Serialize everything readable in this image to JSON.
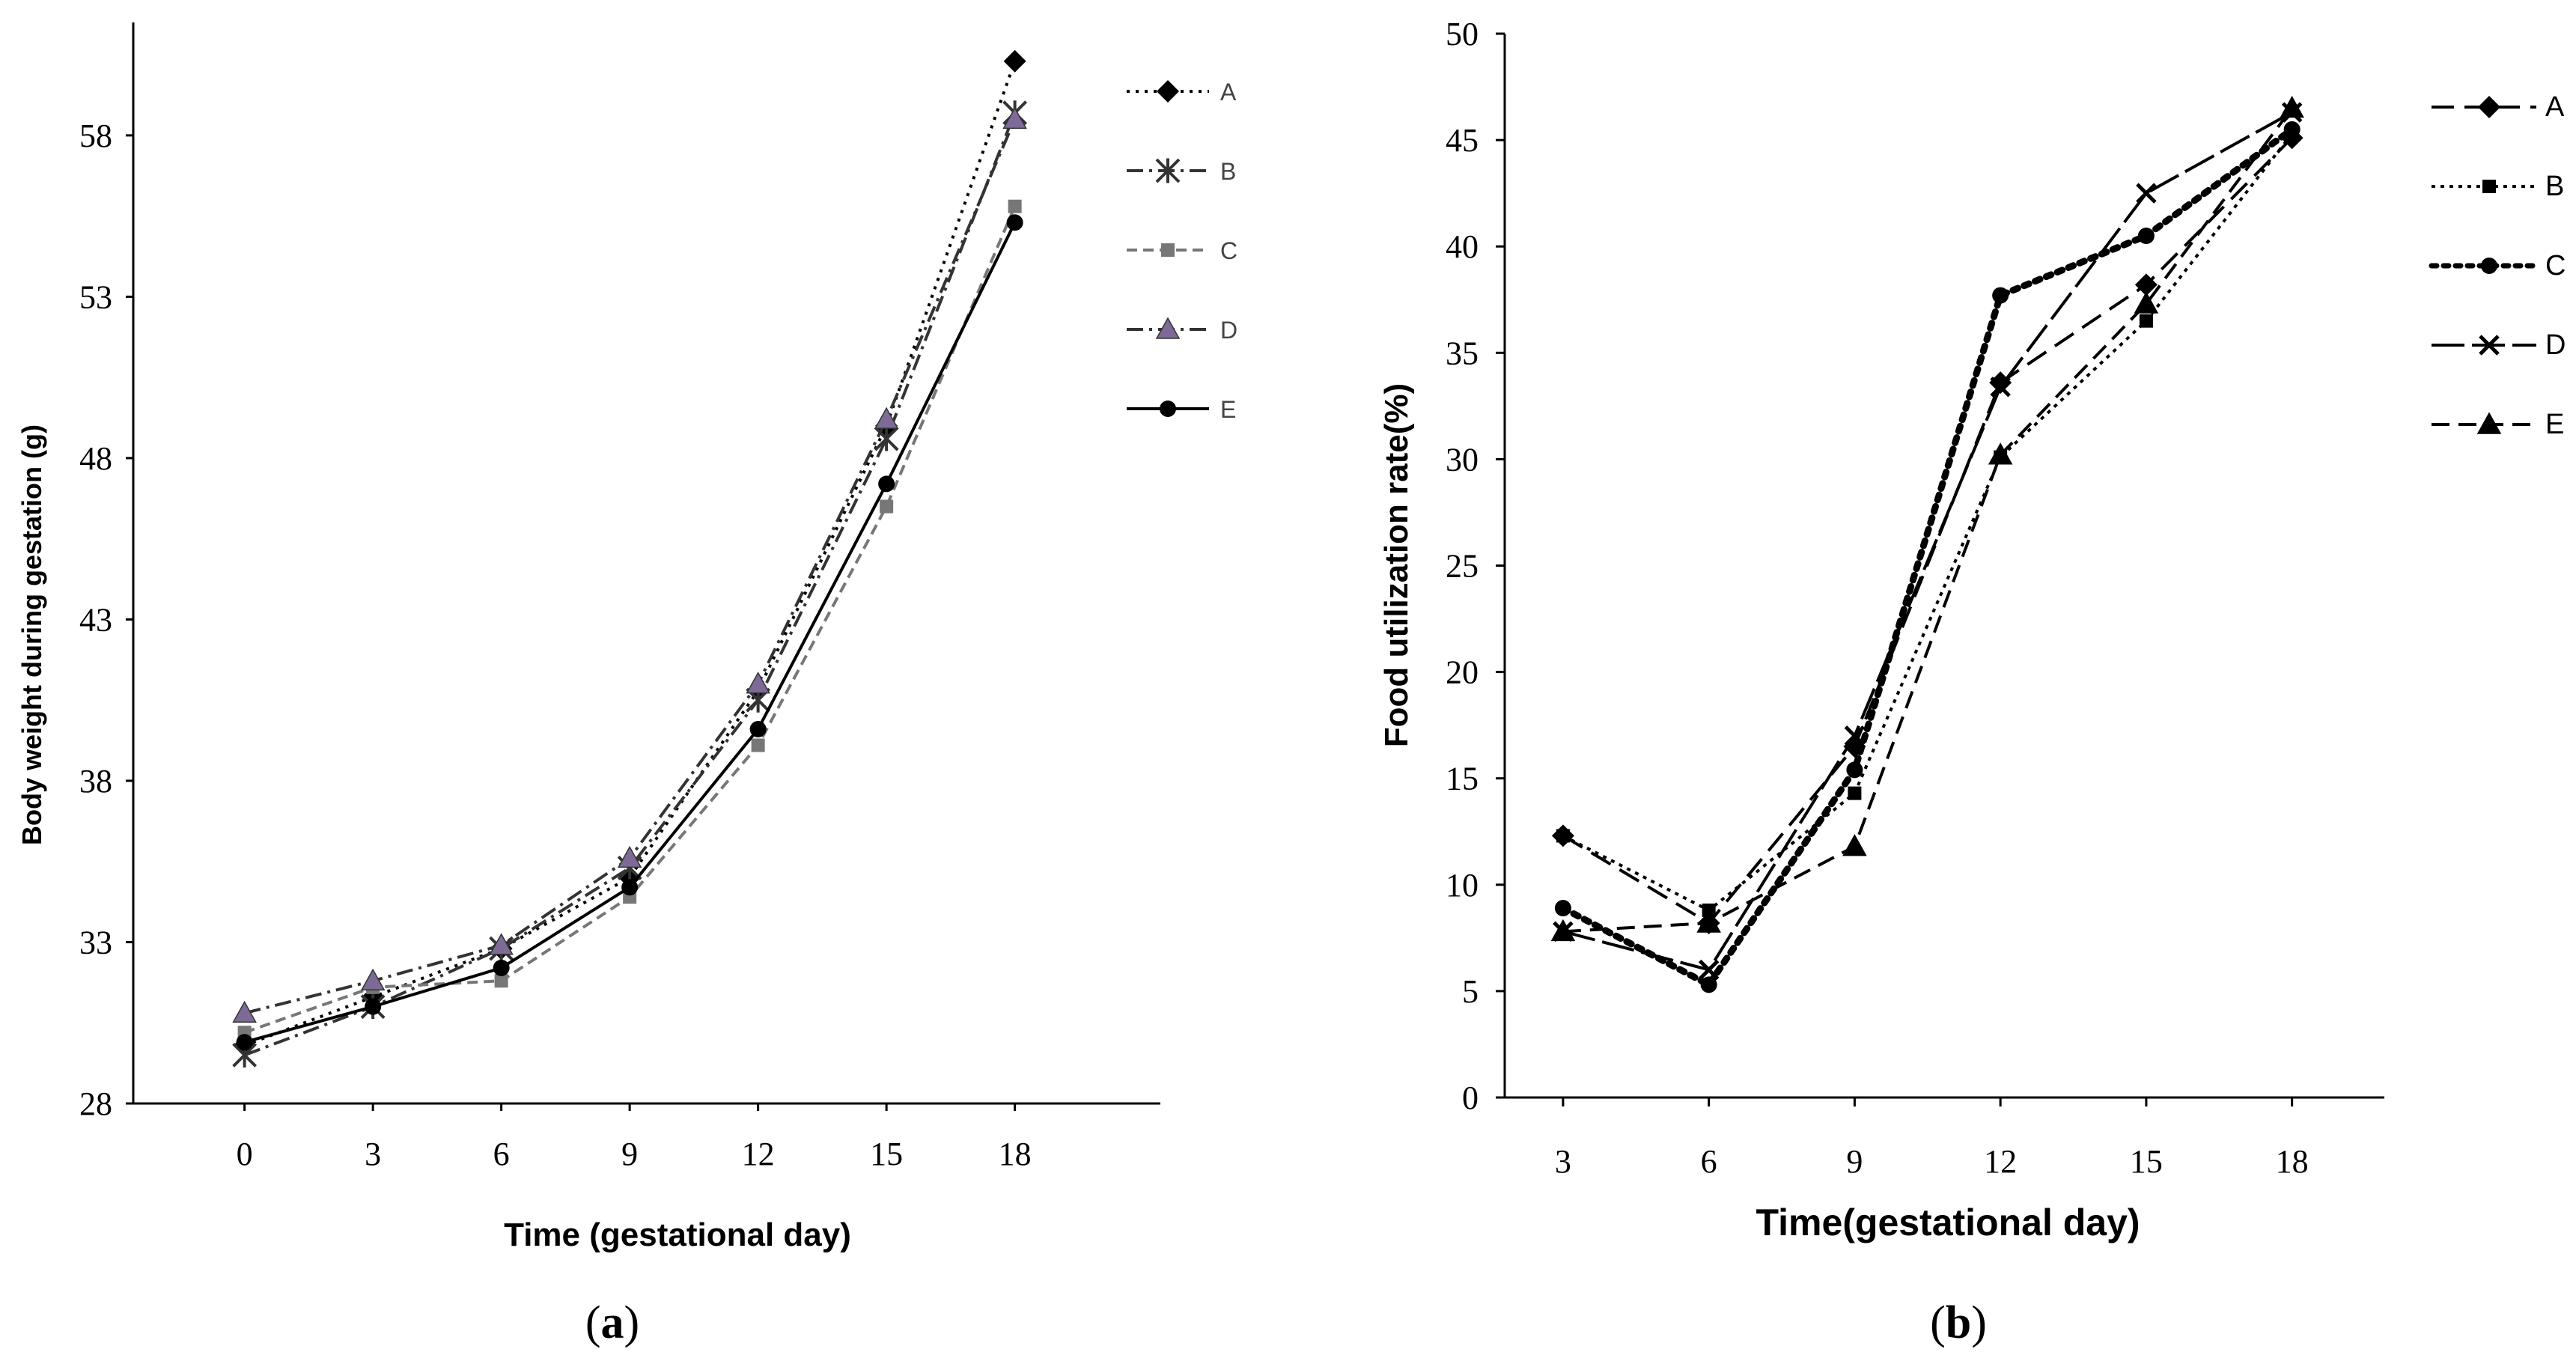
{
  "chart_data": [
    {
      "id": "a",
      "type": "line",
      "panel_label_open": "(",
      "panel_label": "a",
      "panel_label_close": ")",
      "xlabel": "Time (gestational day)",
      "ylabel": "Body weight during gestation (g)",
      "x": [
        0,
        3,
        6,
        9,
        12,
        15,
        18
      ],
      "xlim": [
        -2.6,
        21.4
      ],
      "ylim": [
        28,
        61.5
      ],
      "yticks": [
        28,
        33,
        38,
        43,
        48,
        53,
        58
      ],
      "grid": false,
      "legend": "right",
      "series": [
        {
          "name": "A",
          "marker": "diamond",
          "dash": "4,8",
          "color": "#000000",
          "values": [
            29.8,
            31.3,
            32.8,
            35.0,
            40.8,
            49.0,
            60.3
          ]
        },
        {
          "name": "B",
          "marker": "asterisk",
          "dash": "22,8,4,8",
          "color": "#333333",
          "values": [
            29.5,
            31.0,
            32.8,
            35.3,
            40.5,
            48.6,
            58.7
          ]
        },
        {
          "name": "C",
          "marker": "square",
          "dash": "14,8",
          "color": "#777777",
          "values": [
            30.2,
            31.6,
            31.8,
            34.4,
            39.1,
            46.5,
            55.8
          ]
        },
        {
          "name": "D",
          "marker": "triangle",
          "dash": "22,8,4,8",
          "color": "#333333",
          "fill": "#7d6a96",
          "values": [
            30.8,
            31.8,
            32.9,
            35.6,
            41.0,
            49.2,
            58.5
          ]
        },
        {
          "name": "E",
          "marker": "dot",
          "dash": "",
          "color": "#000000",
          "values": [
            29.9,
            31.0,
            32.2,
            34.7,
            39.6,
            47.2,
            55.3
          ]
        }
      ]
    },
    {
      "id": "b",
      "type": "line",
      "panel_label_open": "(",
      "panel_label": "b",
      "panel_label_close": ")",
      "xlabel": "Time(gestational day)",
      "ylabel": "Food utilization rate(%)",
      "x": [
        3,
        6,
        9,
        12,
        15,
        18
      ],
      "xlim": [
        1.8,
        19.9
      ],
      "ylim": [
        0,
        50
      ],
      "yticks": [
        0,
        5,
        10,
        15,
        20,
        25,
        30,
        35,
        40,
        45,
        50
      ],
      "grid": false,
      "legend": "right",
      "series": [
        {
          "name": "A",
          "marker": "diamond",
          "dash": "30,14",
          "color": "#000000",
          "values": [
            12.3,
            8.2,
            16.5,
            33.6,
            38.2,
            45.1
          ]
        },
        {
          "name": "B",
          "marker": "square",
          "dash": "5,7",
          "color": "#000000",
          "values": [
            12.3,
            8.8,
            14.3,
            30.1,
            36.5,
            45.3
          ]
        },
        {
          "name": "C",
          "marker": "dot",
          "dash": "7,9",
          "width": 9,
          "color": "#000000",
          "values": [
            8.9,
            5.3,
            15.4,
            37.7,
            40.5,
            45.5
          ]
        },
        {
          "name": "D",
          "marker": "x",
          "dash": "44,10",
          "color": "#000000",
          "values": [
            7.8,
            6.0,
            17.0,
            33.4,
            42.5,
            46.3
          ]
        },
        {
          "name": "E",
          "marker": "triangle",
          "dash": "24,12",
          "color": "#000000",
          "values": [
            7.8,
            8.2,
            11.8,
            30.2,
            37.3,
            46.5
          ]
        }
      ]
    }
  ]
}
